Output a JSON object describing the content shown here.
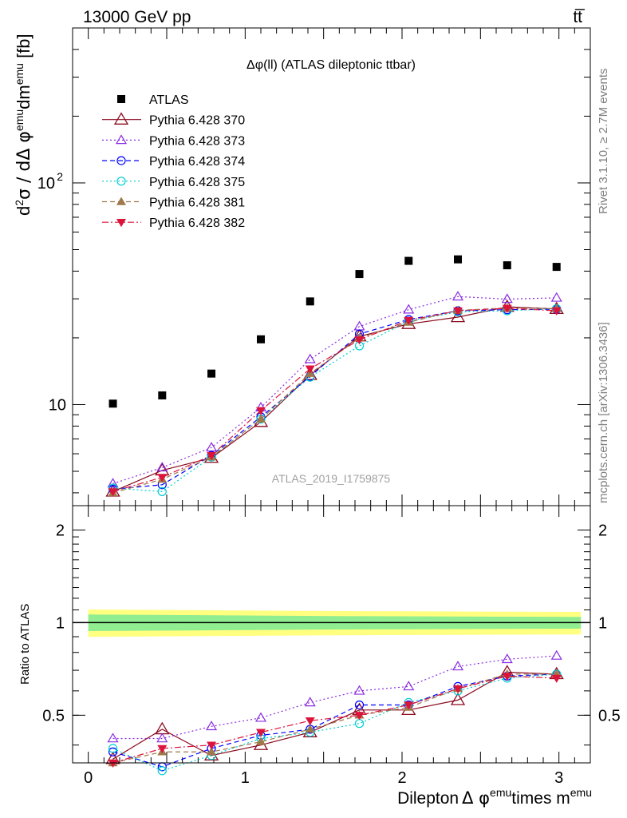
{
  "header": {
    "energy_label": "13000 GeV pp",
    "process_label": "tt̅"
  },
  "side_labels": {
    "rivet": "Rivet 3.1.10, ≥ 2.7M events",
    "mcplots": "mcplots.cern.ch [arXiv:1306.3436]"
  },
  "main_panel": {
    "title": "Δφ(ll) (ATLAS dileptonic ttbar)",
    "analysis_id": "ATLAS_2019_I1759875",
    "ylabel": {
      "prefix": "d",
      "sup1": "2",
      "mid": "σ / dΔ φ",
      "sup2": "emu",
      "mid2": "dm",
      "sup3": "emu",
      "suffix": " [fb]"
    },
    "y_tick_labels": [
      "10",
      "10",
      "2"
    ]
  },
  "ratio_panel": {
    "ylabel": "Ratio to ATLAS",
    "y_tick_labels": [
      "0.5",
      "1",
      "2"
    ]
  },
  "xaxis": {
    "label_a": "Dilepton",
    "label_b": "Δ φ",
    "label_sup1": "emu",
    "label_c": "times m",
    "label_sup2": "emu",
    "tick_labels": [
      "0",
      "1",
      "2",
      "3"
    ]
  },
  "legend": [
    {
      "label": "ATLAS",
      "color": "#000000",
      "marker": "square-filled",
      "dash": "none"
    },
    {
      "label": "Pythia 6.428 370",
      "color": "#8b0a1f",
      "marker": "triangle-open-large",
      "dash": "solid"
    },
    {
      "label": "Pythia 6.428 373",
      "color": "#8a2be2",
      "marker": "triangle-open",
      "dash": "dotted"
    },
    {
      "label": "Pythia 6.428 374",
      "color": "#0000ff",
      "marker": "circle-open",
      "dash": "dashed"
    },
    {
      "label": "Pythia 6.428 375",
      "color": "#00ced1",
      "marker": "circle-open",
      "dash": "dotted"
    },
    {
      "label": "Pythia 6.428 381",
      "color": "#a0784a",
      "marker": "triangle-filled",
      "dash": "dashed"
    },
    {
      "label": "Pythia 6.428 382",
      "color": "#dc143c",
      "marker": "triangle-down-filled",
      "dash": "dashdot"
    }
  ],
  "chart_data": {
    "type": "line",
    "yscale": "log",
    "xlim": [
      -0.1,
      3.2
    ],
    "ylim": [
      3.5,
      500
    ],
    "ratio_ylim": [
      0.35,
      2.4
    ],
    "x": [
      0.157,
      0.471,
      0.785,
      1.1,
      1.414,
      1.728,
      2.042,
      2.356,
      2.67,
      2.985
    ],
    "series": [
      {
        "name": "ATLAS",
        "values": [
          10.1,
          11.0,
          13.8,
          19.7,
          29.2,
          38.8,
          44.5,
          45.2,
          42.5,
          41.8
        ],
        "ratio": [
          1,
          1,
          1,
          1,
          1,
          1,
          1,
          1,
          1,
          1
        ]
      },
      {
        "name": "Pythia 6.428 370",
        "values": [
          4.05,
          5.05,
          5.75,
          8.35,
          13.6,
          20.3,
          23.1,
          24.8,
          27.6,
          27.0
        ],
        "ratio": [
          0.36,
          0.45,
          0.37,
          0.4,
          0.44,
          0.52,
          0.52,
          0.56,
          0.69,
          0.68
        ]
      },
      {
        "name": "Pythia 6.428 373",
        "values": [
          4.4,
          5.2,
          6.4,
          9.7,
          16.0,
          22.5,
          26.8,
          30.7,
          29.9,
          30.3
        ],
        "ratio": [
          0.42,
          0.42,
          0.46,
          0.49,
          0.55,
          0.6,
          0.62,
          0.72,
          0.76,
          0.78
        ]
      },
      {
        "name": "Pythia 6.428 374",
        "values": [
          4.15,
          4.35,
          5.9,
          8.8,
          13.4,
          20.8,
          24.2,
          26.5,
          26.8,
          26.9
        ],
        "ratio": [
          0.38,
          0.34,
          0.39,
          0.43,
          0.45,
          0.54,
          0.54,
          0.62,
          0.67,
          0.68
        ]
      },
      {
        "name": "Pythia 6.428 375",
        "values": [
          4.2,
          4.05,
          5.8,
          8.6,
          13.3,
          18.4,
          23.8,
          26.2,
          26.5,
          27.1
        ],
        "ratio": [
          0.39,
          0.33,
          0.37,
          0.42,
          0.44,
          0.47,
          0.55,
          0.6,
          0.66,
          0.68
        ]
      },
      {
        "name": "Pythia 6.428 381",
        "values": [
          4.0,
          4.6,
          5.8,
          8.6,
          13.8,
          20.0,
          23.5,
          26.6,
          27.3,
          27.1
        ],
        "ratio": [
          0.35,
          0.38,
          0.38,
          0.41,
          0.45,
          0.5,
          0.53,
          0.61,
          0.68,
          0.68
        ]
      },
      {
        "name": "Pythia 6.428 382",
        "values": [
          4.05,
          4.7,
          5.9,
          9.4,
          14.5,
          19.6,
          24.0,
          26.5,
          27.2,
          26.5
        ],
        "ratio": [
          0.35,
          0.39,
          0.4,
          0.44,
          0.48,
          0.5,
          0.54,
          0.61,
          0.67,
          0.66
        ]
      }
    ],
    "ratio_band": {
      "inner": [
        0.95,
        1.05
      ],
      "outer": [
        0.91,
        1.09
      ]
    }
  }
}
